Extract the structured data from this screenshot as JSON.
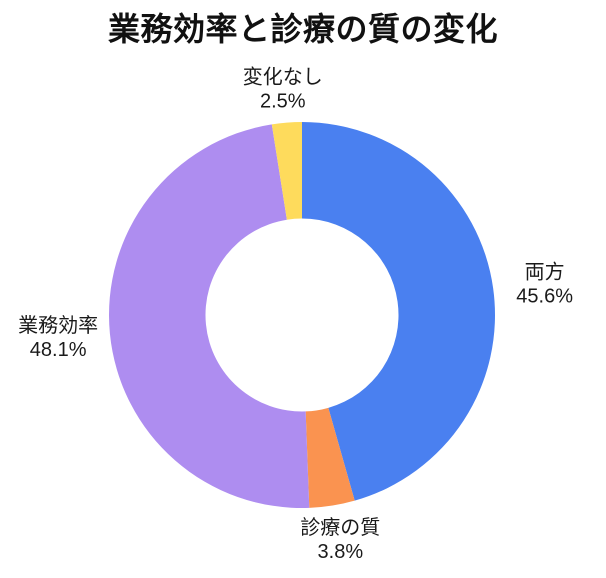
{
  "chart_data": {
    "type": "pie",
    "variant": "donut",
    "title": "業務効率と診療の質の変化",
    "segments": [
      {
        "label": "両方",
        "value": 45.6,
        "pct_label": "45.6%",
        "color": "#4a80f0"
      },
      {
        "label": "診療の質",
        "value": 3.8,
        "pct_label": "3.8%",
        "color": "#fa9350"
      },
      {
        "label": "業務効率",
        "value": 48.1,
        "pct_label": "48.1%",
        "color": "#ae8df0"
      },
      {
        "label": "変化なし",
        "value": 2.5,
        "pct_label": "2.5%",
        "color": "#fedb5c"
      }
    ],
    "start_angle": "12-oclock",
    "direction": "clockwise",
    "inner_radius_ratio": 0.5,
    "label_position": "outside",
    "legend": "none",
    "text_color": "#1a1a1a",
    "background_color": "#ffffff"
  }
}
